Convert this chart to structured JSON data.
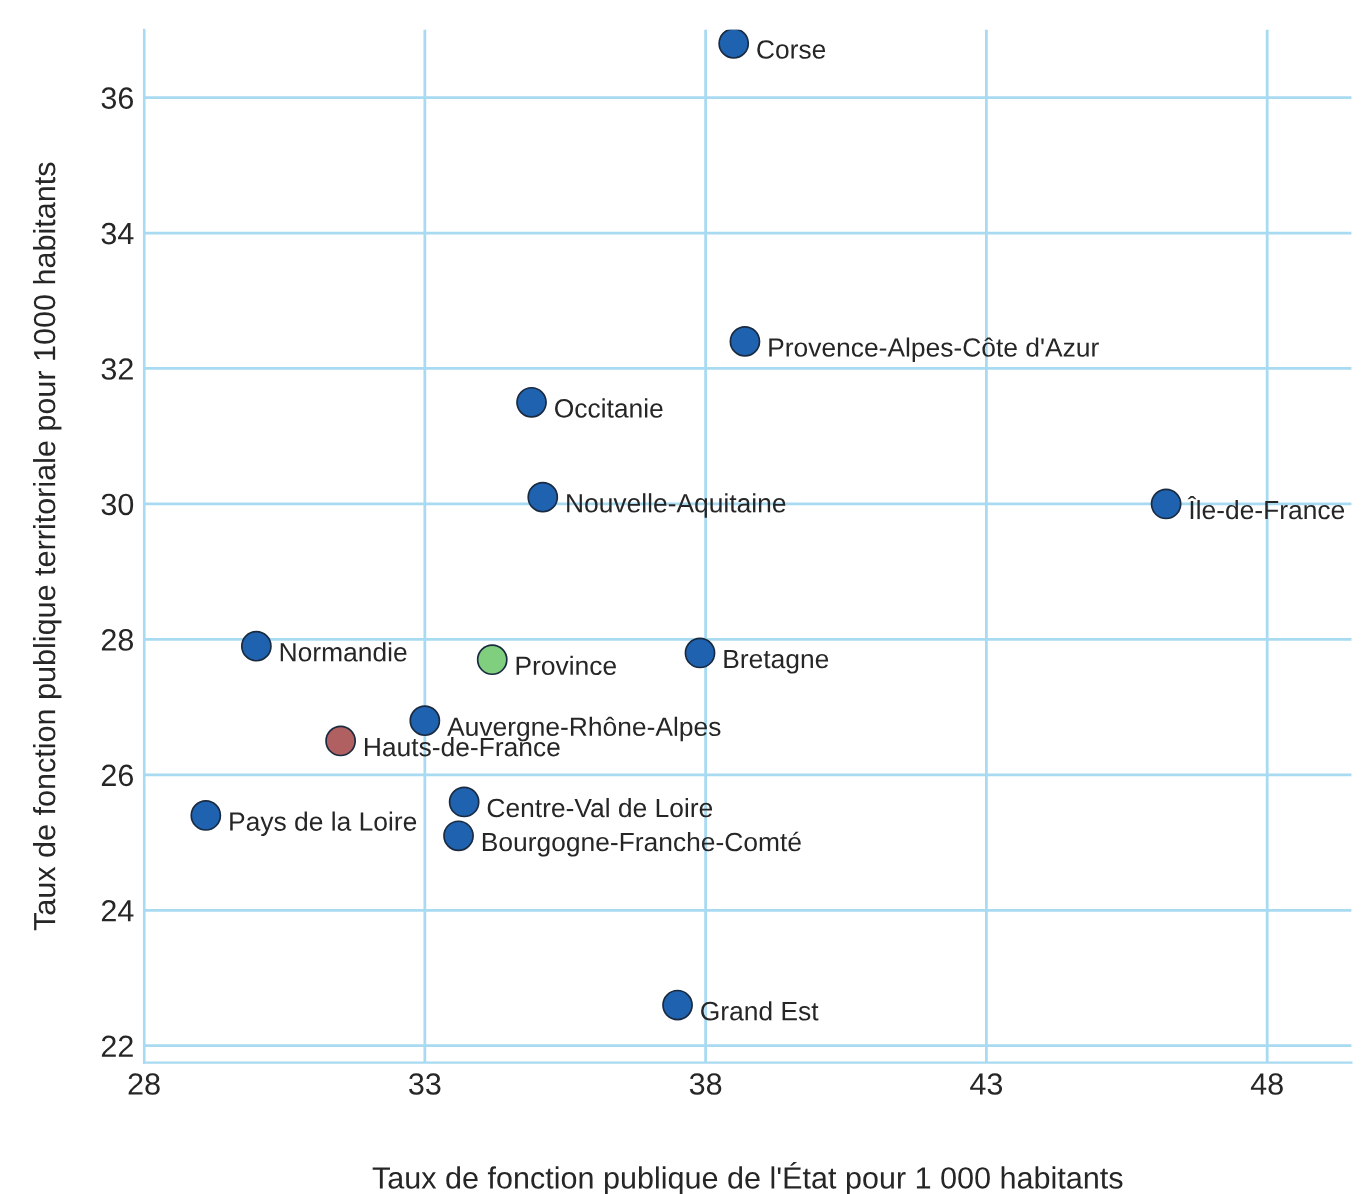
{
  "chart_data": {
    "type": "scatter",
    "xlabel": "Taux de fonction publique de l'État pour 1 000 habitants",
    "ylabel": "Taux de fonction publique territoriale pour 1000 habitants",
    "x": [
      38.5,
      38.7,
      34.9,
      35.1,
      46.2,
      30.0,
      34.2,
      37.9,
      33.0,
      31.5,
      29.1,
      33.7,
      33.6,
      37.5
    ],
    "values": [
      36.8,
      32.4,
      31.5,
      30.1,
      30.0,
      27.9,
      27.7,
      27.8,
      26.8,
      26.5,
      25.4,
      25.6,
      25.1,
      22.6
    ],
    "colors": [
      "#1f63b0",
      "#1f63b0",
      "#1f63b0",
      "#1f63b0",
      "#1f63b0",
      "#1f63b0",
      "#7fcf7f",
      "#1f63b0",
      "#1f63b0",
      "#b06060",
      "#1f63b0",
      "#1f63b0",
      "#1f63b0",
      "#1f63b0"
    ],
    "annotations": [
      {
        "text": "Corse",
        "x": 38.5,
        "y": 36.8
      },
      {
        "text": "Provence-Alpes-Côte d'Azur",
        "x": 38.7,
        "y": 32.4
      },
      {
        "text": "Occitanie",
        "x": 34.9,
        "y": 31.5
      },
      {
        "text": "Nouvelle-Aquitaine",
        "x": 35.1,
        "y": 30.1
      },
      {
        "text": "Île-de-France",
        "x": 46.2,
        "y": 30.0
      },
      {
        "text": "Normandie",
        "x": 30.0,
        "y": 27.9
      },
      {
        "text": "Province",
        "x": 34.2,
        "y": 27.7
      },
      {
        "text": "Bretagne",
        "x": 37.9,
        "y": 27.8
      },
      {
        "text": "Auvergne-Rhône-Alpes",
        "x": 33.0,
        "y": 26.8
      },
      {
        "text": "Hauts-de-France",
        "x": 31.5,
        "y": 26.5
      },
      {
        "text": "Pays de la Loire",
        "x": 29.1,
        "y": 25.4
      },
      {
        "text": "Centre-Val de Loire",
        "x": 33.7,
        "y": 25.6
      },
      {
        "text": "Bourgogne-Franche-Comté",
        "x": 33.6,
        "y": 25.1
      },
      {
        "text": "Grand Est",
        "x": 37.5,
        "y": 22.6
      }
    ],
    "xlim": [
      28,
      49.5
    ],
    "xticks": [
      28,
      33,
      38,
      43,
      48
    ],
    "ylim": [
      21.75,
      37
    ],
    "yticks": [
      22,
      24,
      26,
      28,
      30,
      32,
      34,
      36
    ],
    "grid": true,
    "marker": "circle"
  }
}
